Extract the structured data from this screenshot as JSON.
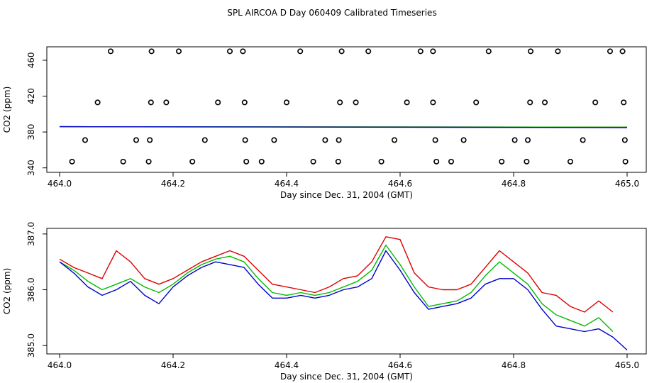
{
  "title": "SPL AIRCOA D  Day 060409  Calibrated Timeseries",
  "chart_data": [
    {
      "type": "scatter",
      "name": "top",
      "xlabel": "Day since Dec. 31, 2004 (GMT)",
      "ylabel": "CO2 (ppm)",
      "xlim": [
        464.0,
        465.0
      ],
      "ylim": [
        335,
        475
      ],
      "xticks": [
        464.0,
        464.2,
        464.4,
        464.6,
        464.8,
        465.0
      ],
      "xtick_labels": [
        "464.0",
        "464.2",
        "464.4",
        "464.6",
        "464.8",
        "465.0"
      ],
      "yticks": [
        340,
        380,
        420,
        460
      ],
      "ytick_labels": [
        "340",
        "380",
        "420",
        "460"
      ],
      "series": [
        {
          "name": "markers",
          "marker": "open-circle",
          "color": "#000000",
          "x": [
            464.09,
            464.162,
            464.21,
            464.3,
            464.323,
            464.424,
            464.497,
            464.544,
            464.636,
            464.658,
            464.756,
            464.83,
            464.878,
            464.97,
            464.992,
            464.067,
            464.161,
            464.188,
            464.279,
            464.326,
            464.4,
            464.494,
            464.522,
            464.612,
            464.658,
            464.734,
            464.829,
            464.855,
            464.944,
            464.994,
            464.045,
            464.135,
            464.159,
            464.256,
            464.327,
            464.378,
            464.468,
            464.492,
            464.59,
            464.662,
            464.712,
            464.802,
            464.825,
            464.922,
            464.996,
            464.022,
            464.112,
            464.157,
            464.234,
            464.329,
            464.356,
            464.447,
            464.491,
            464.567,
            464.664,
            464.69,
            464.779,
            464.823,
            464.9,
            464.997
          ],
          "y": [
            470,
            470,
            470,
            470,
            470,
            470,
            470,
            470,
            470,
            470,
            470,
            470,
            470,
            470,
            470,
            413,
            413,
            413,
            413,
            413,
            413,
            413,
            413,
            413,
            413,
            413,
            413,
            413,
            413,
            413,
            371,
            371,
            371,
            371,
            371,
            371,
            371,
            371,
            371,
            371,
            371,
            371,
            371,
            371,
            371,
            347,
            347,
            347,
            347,
            347,
            347,
            347,
            347,
            347,
            347,
            347,
            347,
            347,
            347,
            347
          ]
        },
        {
          "name": "red",
          "color": "#dd0000",
          "x": [
            464.0,
            465.0
          ],
          "y": [
            385.9,
            385.4
          ]
        },
        {
          "name": "green",
          "color": "#00bb00",
          "x": [
            464.0,
            465.0
          ],
          "y": [
            385.9,
            385.4
          ]
        },
        {
          "name": "blue",
          "color": "#0000cc",
          "x": [
            464.0,
            465.0
          ],
          "y": [
            385.9,
            384.9
          ]
        }
      ]
    },
    {
      "type": "line",
      "name": "bottom",
      "xlabel": "Day since Dec. 31, 2004 (GMT)",
      "ylabel": "CO2 (ppm)",
      "xlim": [
        464.0,
        465.0
      ],
      "ylim": [
        384.85,
        387.1
      ],
      "xticks": [
        464.0,
        464.2,
        464.4,
        464.6,
        464.8,
        465.0
      ],
      "xtick_labels": [
        "464.0",
        "464.2",
        "464.4",
        "464.6",
        "464.8",
        "465.0"
      ],
      "yticks": [
        385.0,
        386.0,
        387.0
      ],
      "ytick_labels": [
        "385.0",
        "386.0",
        "387.0"
      ],
      "x": [
        464.0,
        464.025,
        464.05,
        464.075,
        464.1,
        464.125,
        464.15,
        464.175,
        464.2,
        464.225,
        464.25,
        464.275,
        464.3,
        464.325,
        464.35,
        464.375,
        464.4,
        464.425,
        464.45,
        464.475,
        464.5,
        464.525,
        464.55,
        464.575,
        464.6,
        464.625,
        464.65,
        464.675,
        464.7,
        464.725,
        464.75,
        464.775,
        464.8,
        464.825,
        464.85,
        464.875,
        464.9,
        464.925,
        464.95,
        464.975,
        465.0
      ],
      "series": [
        {
          "name": "red",
          "color": "#dd0000",
          "y": [
            386.55,
            386.4,
            386.3,
            386.2,
            386.7,
            386.5,
            386.2,
            386.1,
            386.2,
            386.35,
            386.5,
            386.6,
            386.7,
            386.6,
            386.35,
            386.1,
            386.05,
            386.0,
            385.95,
            386.05,
            386.2,
            386.25,
            386.5,
            386.95,
            386.9,
            386.3,
            386.05,
            386.0,
            386.0,
            386.1,
            386.4,
            386.7,
            386.5,
            386.3,
            385.95,
            385.9,
            385.7,
            385.6,
            385.8,
            385.6,
            null
          ]
        },
        {
          "name": "green",
          "color": "#00bb00",
          "y": [
            386.5,
            386.35,
            386.15,
            386.0,
            386.1,
            386.2,
            386.05,
            385.95,
            386.1,
            386.3,
            386.45,
            386.55,
            386.6,
            386.5,
            386.2,
            385.95,
            385.9,
            385.95,
            385.9,
            385.95,
            386.05,
            386.15,
            386.35,
            386.8,
            386.45,
            386.05,
            385.7,
            385.75,
            385.8,
            385.95,
            386.25,
            386.5,
            386.3,
            386.1,
            385.75,
            385.55,
            385.45,
            385.35,
            385.5,
            385.25,
            null
          ]
        },
        {
          "name": "blue",
          "color": "#0000cc",
          "y": [
            386.5,
            386.3,
            386.05,
            385.9,
            386.0,
            386.15,
            385.9,
            385.75,
            386.05,
            386.25,
            386.4,
            386.5,
            386.45,
            386.4,
            386.1,
            385.85,
            385.85,
            385.9,
            385.85,
            385.9,
            386.0,
            386.05,
            386.2,
            386.7,
            386.35,
            385.95,
            385.65,
            385.7,
            385.75,
            385.85,
            386.1,
            386.2,
            386.2,
            386.0,
            385.65,
            385.35,
            385.3,
            385.25,
            385.3,
            385.15,
            384.92
          ]
        }
      ]
    }
  ]
}
